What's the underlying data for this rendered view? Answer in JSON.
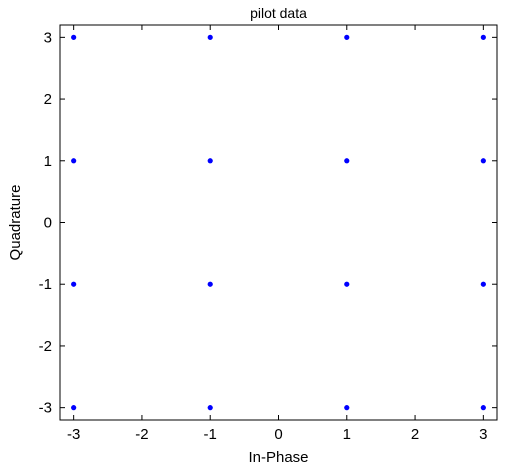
{
  "chart_data": {
    "type": "scatter",
    "title": "pilot data",
    "xlabel": "In-Phase",
    "ylabel": "Quadrature",
    "xlim": [
      -3.2,
      3.2
    ],
    "ylim": [
      -3.2,
      3.2
    ],
    "xticks": [
      -3,
      -2,
      -1,
      0,
      1,
      2,
      3
    ],
    "yticks": [
      -3,
      -2,
      -1,
      0,
      1,
      2,
      3
    ],
    "grid": false,
    "marker_color": "#0000ff",
    "series": [
      {
        "points": [
          [
            -3,
            3
          ],
          [
            -1,
            3
          ],
          [
            1,
            3
          ],
          [
            3,
            3
          ],
          [
            -3,
            1
          ],
          [
            -1,
            1
          ],
          [
            1,
            1
          ],
          [
            3,
            1
          ],
          [
            -3,
            -1
          ],
          [
            -1,
            -1
          ],
          [
            1,
            -1
          ],
          [
            3,
            -1
          ],
          [
            -3,
            -3
          ],
          [
            -1,
            -3
          ],
          [
            1,
            -3
          ],
          [
            3,
            -3
          ]
        ]
      }
    ]
  }
}
